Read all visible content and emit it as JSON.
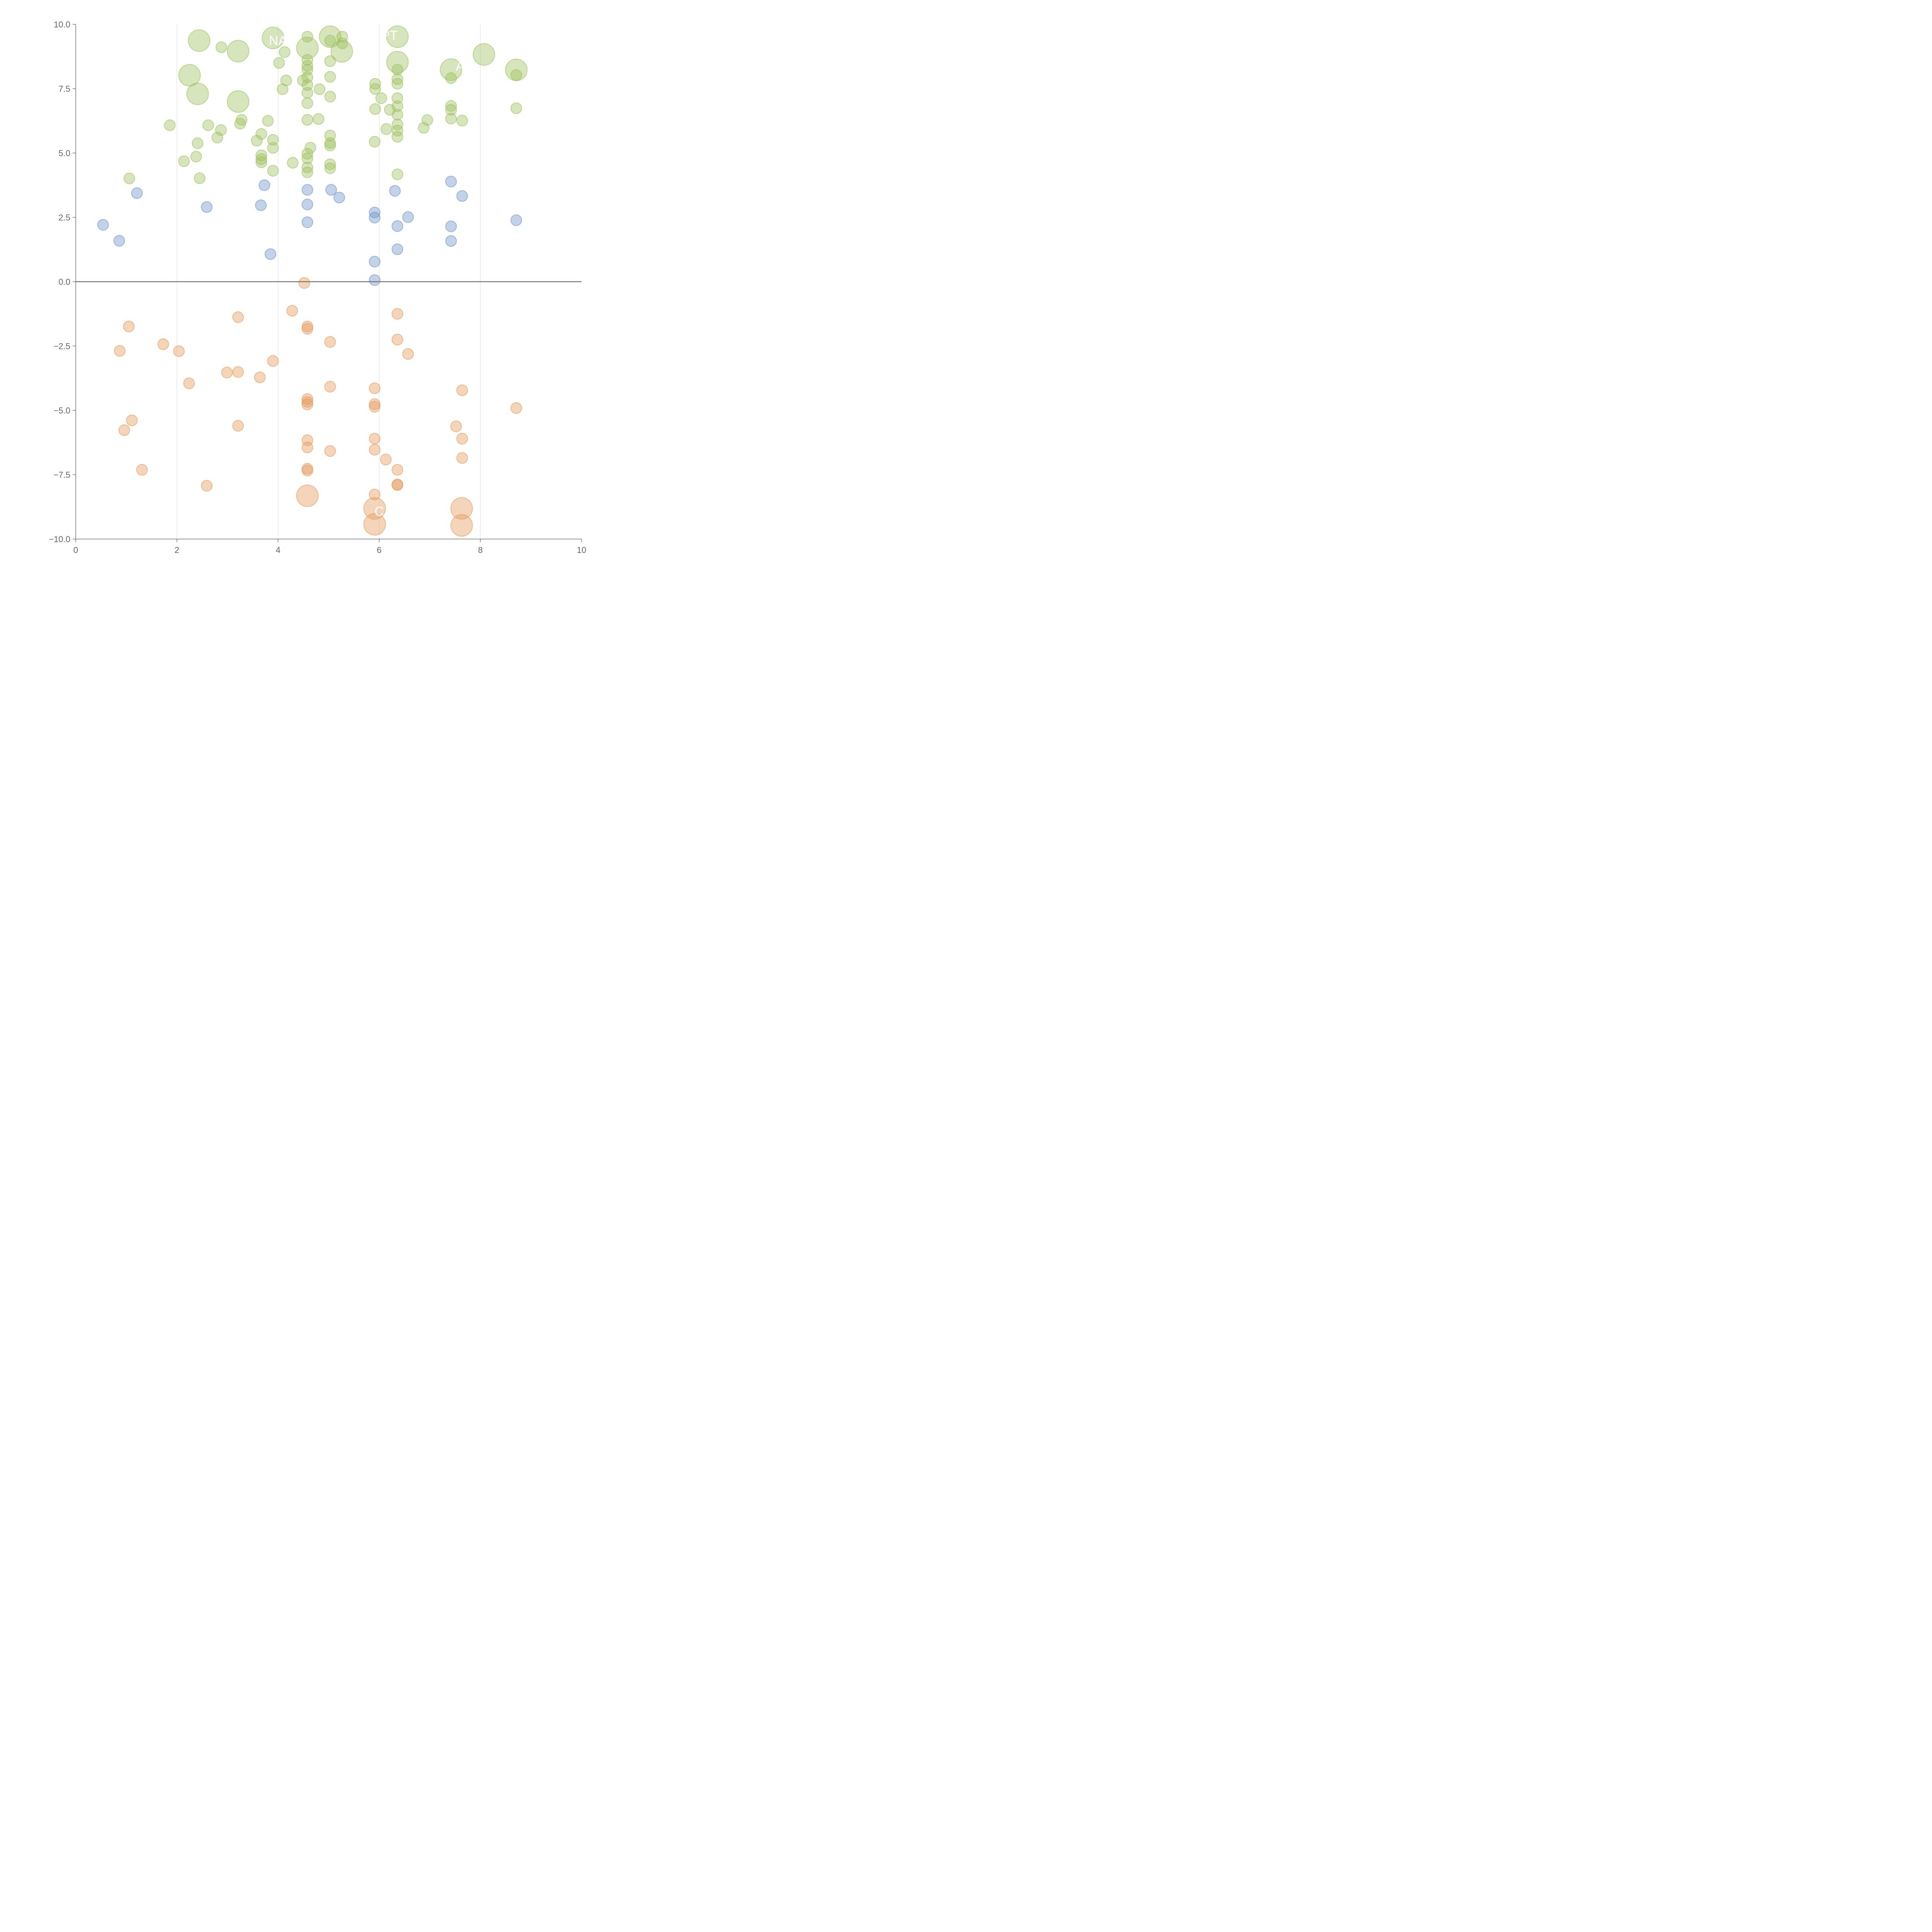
{
  "chart_data": {
    "type": "scatter",
    "title": "",
    "xlabel": "",
    "ylabel": "",
    "xlim": [
      0,
      10
    ],
    "ylim": [
      -10,
      10
    ],
    "xticks": [
      "0",
      "2",
      "4",
      "6",
      "8",
      "10"
    ],
    "yticks": [
      "−10.0",
      "−7.5",
      "−5.0",
      "−2.5",
      "0.0",
      "2.5",
      "5.0",
      "7.5",
      "10.0"
    ],
    "grid": "vertical",
    "reference_line_y": 0,
    "series": [
      {
        "name": "green",
        "color": "#9dc05c",
        "points": [
          [
            2.44,
            9.37,
            2
          ],
          [
            3.9,
            9.47,
            2
          ],
          [
            5.03,
            9.52,
            2
          ],
          [
            6.36,
            9.52,
            2
          ],
          [
            3.21,
            8.96,
            2
          ],
          [
            4.58,
            9.08,
            2
          ],
          [
            5.26,
            8.95,
            2
          ],
          [
            2.25,
            8.02,
            2
          ],
          [
            2.41,
            7.3,
            2
          ],
          [
            3.21,
            7.0,
            2
          ],
          [
            6.36,
            8.53,
            2
          ],
          [
            7.42,
            8.24,
            2
          ],
          [
            8.07,
            8.83,
            2
          ],
          [
            8.71,
            8.23,
            2
          ],
          [
            2.88,
            9.11,
            1
          ],
          [
            4.02,
            8.5,
            1
          ],
          [
            4.13,
            8.92,
            1
          ],
          [
            4.16,
            7.82,
            1
          ],
          [
            4.09,
            7.48,
            1
          ],
          [
            4.58,
            9.52,
            1
          ],
          [
            4.58,
            8.62,
            1
          ],
          [
            4.58,
            8.39,
            1
          ],
          [
            4.58,
            8.24,
            1
          ],
          [
            4.58,
            7.94,
            1
          ],
          [
            4.58,
            7.64,
            1
          ],
          [
            4.58,
            7.34,
            1
          ],
          [
            4.58,
            6.94,
            1
          ],
          [
            4.49,
            7.82,
            1
          ],
          [
            4.82,
            7.48,
            1
          ],
          [
            5.03,
            9.37,
            1
          ],
          [
            5.27,
            9.52,
            1
          ],
          [
            5.27,
            9.26,
            1
          ],
          [
            5.03,
            8.57,
            1
          ],
          [
            5.03,
            7.96,
            1
          ],
          [
            5.03,
            7.19,
            1
          ],
          [
            5.92,
            7.69,
            1
          ],
          [
            5.92,
            7.49,
            1
          ],
          [
            6.04,
            7.13,
            1
          ],
          [
            5.92,
            6.71,
            1
          ],
          [
            6.21,
            6.68,
            1
          ],
          [
            6.36,
            8.24,
            1
          ],
          [
            6.36,
            7.87,
            1
          ],
          [
            6.36,
            7.69,
            1
          ],
          [
            6.36,
            7.13,
            1
          ],
          [
            6.36,
            6.82,
            1
          ],
          [
            6.36,
            6.49,
            1
          ],
          [
            6.36,
            6.11,
            1
          ],
          [
            6.36,
            5.87,
            1
          ],
          [
            6.36,
            5.63,
            1
          ],
          [
            6.36,
            4.17,
            1
          ],
          [
            6.14,
            5.93,
            1
          ],
          [
            5.91,
            5.44,
            1
          ],
          [
            6.95,
            6.28,
            1
          ],
          [
            6.88,
            5.98,
            1
          ],
          [
            7.42,
            6.83,
            1
          ],
          [
            7.42,
            6.68,
            1
          ],
          [
            7.42,
            6.34,
            1
          ],
          [
            7.42,
            7.91,
            1
          ],
          [
            7.64,
            6.26,
            1
          ],
          [
            8.71,
            8.03,
            1
          ],
          [
            8.71,
            6.74,
            1
          ],
          [
            1.86,
            6.08,
            1
          ],
          [
            2.14,
            4.68,
            1
          ],
          [
            2.38,
            4.86,
            1
          ],
          [
            2.41,
            5.38,
            1
          ],
          [
            2.62,
            6.08,
            1
          ],
          [
            2.8,
            5.6,
            1
          ],
          [
            2.87,
            5.89,
            1
          ],
          [
            3.28,
            6.29,
            1
          ],
          [
            3.25,
            6.14,
            1
          ],
          [
            2.45,
            4.02,
            1
          ],
          [
            1.06,
            4.01,
            1
          ],
          [
            3.8,
            6.25,
            1
          ],
          [
            3.67,
            5.74,
            1
          ],
          [
            3.58,
            5.48,
            1
          ],
          [
            3.9,
            5.51,
            1
          ],
          [
            3.9,
            5.2,
            1
          ],
          [
            3.67,
            4.91,
            1
          ],
          [
            3.67,
            4.76,
            1
          ],
          [
            3.67,
            4.64,
            1
          ],
          [
            3.9,
            4.31,
            1
          ],
          [
            4.29,
            4.62,
            1
          ],
          [
            4.58,
            6.29,
            1
          ],
          [
            4.8,
            6.32,
            1
          ],
          [
            4.64,
            5.21,
            1
          ],
          [
            4.58,
            4.97,
            1
          ],
          [
            4.58,
            4.79,
            1
          ],
          [
            4.58,
            4.44,
            1
          ],
          [
            4.58,
            4.25,
            1
          ],
          [
            5.03,
            5.68,
            1
          ],
          [
            5.03,
            5.39,
            1
          ],
          [
            5.03,
            5.29,
            1
          ],
          [
            5.03,
            4.56,
            1
          ],
          [
            5.03,
            4.41,
            1
          ]
        ]
      },
      {
        "name": "blue",
        "color": "#6e93c8",
        "points": [
          [
            0.54,
            2.21,
            1
          ],
          [
            0.86,
            1.59,
            1
          ],
          [
            1.21,
            3.44,
            1
          ],
          [
            2.59,
            2.9,
            1
          ],
          [
            3.73,
            3.75,
            1
          ],
          [
            3.66,
            2.97,
            1
          ],
          [
            3.85,
            1.07,
            1
          ],
          [
            4.58,
            3.57,
            1
          ],
          [
            4.58,
            3.0,
            1
          ],
          [
            4.58,
            2.31,
            1
          ],
          [
            5.05,
            3.57,
            1
          ],
          [
            5.21,
            3.27,
            1
          ],
          [
            5.91,
            2.69,
            1
          ],
          [
            5.91,
            2.49,
            1
          ],
          [
            5.91,
            0.78,
            1
          ],
          [
            5.91,
            0.06,
            1
          ],
          [
            6.31,
            3.53,
            1
          ],
          [
            6.36,
            2.16,
            1
          ],
          [
            6.36,
            1.26,
            1
          ],
          [
            6.57,
            2.51,
            1
          ],
          [
            7.42,
            3.89,
            1
          ],
          [
            7.42,
            2.15,
            1
          ],
          [
            7.42,
            1.58,
            1
          ],
          [
            7.64,
            3.33,
            1
          ],
          [
            8.71,
            2.39,
            1
          ]
        ]
      },
      {
        "name": "orange",
        "color": "#e59a5a",
        "points": [
          [
            4.58,
            -8.32,
            2
          ],
          [
            5.91,
            -8.81,
            2
          ],
          [
            5.91,
            -9.43,
            2
          ],
          [
            7.63,
            -8.81,
            2
          ],
          [
            7.63,
            -9.47,
            2
          ],
          [
            4.52,
            -0.05,
            1
          ],
          [
            4.28,
            -1.13,
            1
          ],
          [
            3.21,
            -1.38,
            1
          ],
          [
            1.05,
            -1.74,
            1
          ],
          [
            4.58,
            -1.74,
            1
          ],
          [
            4.58,
            -1.83,
            1
          ],
          [
            6.36,
            -1.25,
            1
          ],
          [
            6.36,
            -2.25,
            1
          ],
          [
            5.03,
            -2.34,
            1
          ],
          [
            1.73,
            -2.43,
            1
          ],
          [
            0.87,
            -2.69,
            1
          ],
          [
            2.04,
            -2.7,
            1
          ],
          [
            6.57,
            -2.81,
            1
          ],
          [
            3.9,
            -3.08,
            1
          ],
          [
            2.99,
            -3.53,
            1
          ],
          [
            3.21,
            -3.51,
            1
          ],
          [
            3.64,
            -3.72,
            1
          ],
          [
            2.24,
            -3.95,
            1
          ],
          [
            5.03,
            -4.08,
            1
          ],
          [
            5.91,
            -4.14,
            1
          ],
          [
            7.64,
            -4.22,
            1
          ],
          [
            4.58,
            -4.56,
            1
          ],
          [
            4.58,
            -4.67,
            1
          ],
          [
            4.58,
            -4.77,
            1
          ],
          [
            5.91,
            -4.76,
            1
          ],
          [
            5.91,
            -4.86,
            1
          ],
          [
            8.71,
            -4.91,
            1
          ],
          [
            1.11,
            -5.39,
            1
          ],
          [
            0.96,
            -5.77,
            1
          ],
          [
            3.21,
            -5.6,
            1
          ],
          [
            7.52,
            -5.62,
            1
          ],
          [
            5.91,
            -6.1,
            1
          ],
          [
            7.64,
            -6.1,
            1
          ],
          [
            4.58,
            -6.16,
            1
          ],
          [
            4.58,
            -6.44,
            1
          ],
          [
            5.03,
            -6.58,
            1
          ],
          [
            5.91,
            -6.53,
            1
          ],
          [
            6.13,
            -6.91,
            1
          ],
          [
            7.64,
            -6.85,
            1
          ],
          [
            1.31,
            -7.31,
            1
          ],
          [
            4.58,
            -7.27,
            1
          ],
          [
            4.58,
            -7.34,
            1
          ],
          [
            6.36,
            -7.31,
            1
          ],
          [
            6.36,
            -7.88,
            1
          ],
          [
            6.36,
            -7.9,
            1
          ],
          [
            2.59,
            -7.93,
            1
          ],
          [
            5.91,
            -8.27,
            1
          ]
        ]
      }
    ],
    "annotations": [
      {
        "text": "NA",
        "x": 4.0,
        "y": 9.2
      },
      {
        "text": "PT",
        "x": 6.2,
        "y": 9.4
      },
      {
        "text": "A",
        "x": 7.6,
        "y": 8.2
      },
      {
        "text": "C",
        "x": 6.0,
        "y": -9.1
      }
    ]
  }
}
